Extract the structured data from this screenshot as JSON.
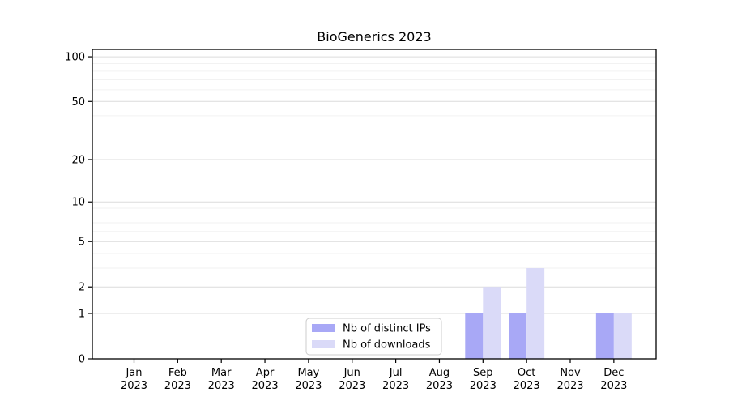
{
  "chart_data": {
    "type": "bar",
    "title": "BioGenerics 2023",
    "categories": [
      "Jan",
      "Feb",
      "Mar",
      "Apr",
      "May",
      "Jun",
      "Jul",
      "Aug",
      "Sep",
      "Oct",
      "Nov",
      "Dec"
    ],
    "category_sublabel": "2023",
    "series": [
      {
        "name": "Nb of distinct IPs",
        "color": "#a8a8f6",
        "values": [
          0,
          0,
          0,
          0,
          0,
          0,
          0,
          0,
          1,
          1,
          0,
          1
        ]
      },
      {
        "name": "Nb of downloads",
        "color": "#dadaf8",
        "values": [
          0,
          0,
          0,
          0,
          0,
          0,
          0,
          0,
          2,
          3,
          0,
          1
        ]
      }
    ],
    "yticks": [
      0,
      1,
      2,
      5,
      10,
      20,
      50,
      100
    ],
    "yticks_minor": [
      3,
      4,
      6,
      7,
      8,
      9,
      30,
      40,
      60,
      70,
      80,
      90
    ],
    "scale": "log1p",
    "ylim": [
      0,
      112
    ],
    "xlabel": "",
    "ylabel": "",
    "grid": "horizontal",
    "legend_position": "lower center"
  },
  "colors": {
    "background": "#ffffff",
    "axis": "#000000",
    "text": "#000000",
    "grid_major": "#dcdcdc",
    "grid_minor": "#f2f2f2",
    "legend_border": "#cccccc",
    "legend_fill": "#ffffff"
  }
}
